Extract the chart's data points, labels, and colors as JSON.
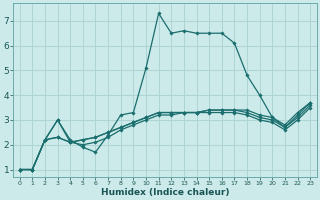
{
  "title": "",
  "xlabel": "Humidex (Indice chaleur)",
  "ylabel": "",
  "bg_color": "#cdeaea",
  "grid_color": "#aed4d4",
  "line_color": "#1a6e6e",
  "xlim": [
    -0.5,
    23.5
  ],
  "ylim": [
    0.7,
    7.7
  ],
  "xtick_labels": [
    "0",
    "1",
    "2",
    "3",
    "4",
    "5",
    "6",
    "7",
    "8",
    "9",
    "10",
    "11",
    "12",
    "13",
    "14",
    "15",
    "16",
    "17",
    "18",
    "19",
    "20",
    "21",
    "22",
    "23"
  ],
  "ytick_labels": [
    "1",
    "2",
    "3",
    "4",
    "5",
    "6",
    "7"
  ],
  "series": [
    [
      1.0,
      1.0,
      2.2,
      3.0,
      2.2,
      1.9,
      1.7,
      2.4,
      3.2,
      3.3,
      5.1,
      7.3,
      6.5,
      6.6,
      6.5,
      6.5,
      6.5,
      6.1,
      4.8,
      4.0,
      3.1,
      2.8,
      3.3,
      3.7
    ],
    [
      1.0,
      1.0,
      2.2,
      3.0,
      2.1,
      2.2,
      2.3,
      2.5,
      2.7,
      2.9,
      3.1,
      3.3,
      3.3,
      3.3,
      3.3,
      3.4,
      3.4,
      3.4,
      3.4,
      3.2,
      3.1,
      2.7,
      3.2,
      3.7
    ],
    [
      1.0,
      1.0,
      2.2,
      2.3,
      2.1,
      2.2,
      2.3,
      2.5,
      2.7,
      2.9,
      3.1,
      3.3,
      3.3,
      3.3,
      3.3,
      3.4,
      3.4,
      3.4,
      3.3,
      3.1,
      3.0,
      2.7,
      3.1,
      3.6
    ],
    [
      1.0,
      1.0,
      2.2,
      2.3,
      2.1,
      2.0,
      2.1,
      2.3,
      2.6,
      2.8,
      3.0,
      3.2,
      3.2,
      3.3,
      3.3,
      3.3,
      3.3,
      3.3,
      3.2,
      3.0,
      2.9,
      2.6,
      3.0,
      3.5
    ]
  ]
}
